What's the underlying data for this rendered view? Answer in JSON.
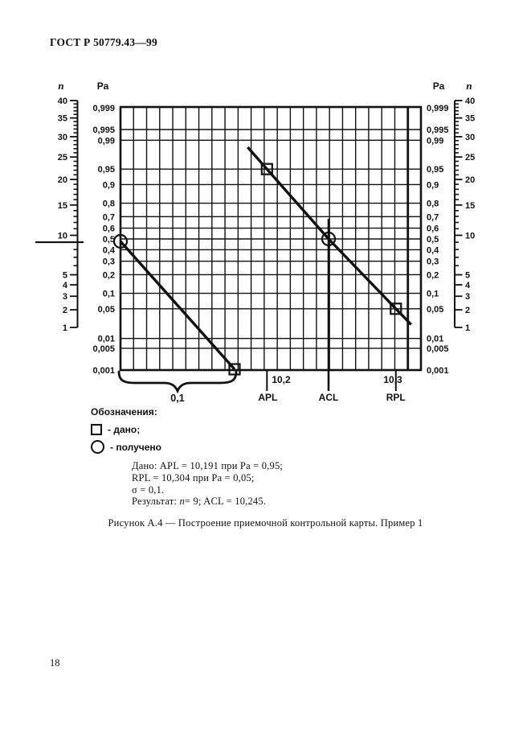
{
  "page": {
    "header": "ГОСТ Р 50779.43—99",
    "page_number": "18",
    "caption": "Рисунок А.4 — Построение приемочной контрольной карты. Пример 1"
  },
  "figure": {
    "axis_titles": {
      "left_n": "n",
      "left_pa": "Ра",
      "right_pa": "Ра",
      "right_n": "n"
    },
    "legend": {
      "title": "Обозначения:",
      "given_label": "- дано;",
      "obtained_label": "- получено"
    },
    "notes": {
      "line1": "Дано: APL = 10,191 при Ра = 0,95;",
      "line2": "RPL = 10,304 при Ра = 0,05;",
      "line3": "σ = 0,1.",
      "line4_prefix": "Результат: ",
      "line4_n": "n",
      "line4_rest": "= 9; ACL = 10,245."
    }
  },
  "chart_data": {
    "type": "line",
    "x_axis": {
      "tick_labels": [
        "10,2",
        "10,3"
      ],
      "tick_values": [
        10.2,
        10.3
      ],
      "construction_line_labels": [
        "APL",
        "ACL",
        "RPL"
      ],
      "construction_line_values": [
        10.191,
        10.245,
        10.304
      ],
      "sigma_brace_label": "0,1"
    },
    "pa_axis": {
      "title": "Ра",
      "scale": "normal-probability",
      "sides": [
        "left",
        "right"
      ],
      "tick_labels": [
        "0,999",
        "0,995",
        "0,99",
        "0,95",
        "0,9",
        "0,8",
        "0,7",
        "0,6",
        "0,5",
        "0,4",
        "0,3",
        "0,2",
        "0,1",
        "0,05",
        "0,01",
        "0,005",
        "0,001"
      ],
      "tick_values": [
        0.999,
        0.995,
        0.99,
        0.95,
        0.9,
        0.8,
        0.7,
        0.6,
        0.5,
        0.4,
        0.3,
        0.2,
        0.1,
        0.05,
        0.01,
        0.005,
        0.001
      ]
    },
    "n_axis": {
      "title": "n",
      "scale": "sqrt",
      "sides": [
        "left",
        "right"
      ],
      "major_tick_labels": [
        "40",
        "35",
        "30",
        "25",
        "20",
        "15",
        "10",
        "5",
        "4",
        "3",
        "2",
        "1"
      ],
      "major_tick_values": [
        40,
        35,
        30,
        25,
        20,
        15,
        10,
        5,
        4,
        3,
        2,
        1
      ],
      "minor_ticks_every_integer": true
    },
    "series": [
      {
        "name": "sigma-auxiliary-line",
        "points": [
          {
            "pa": 0.5,
            "marker": "circle",
            "meaning": "получено"
          },
          {
            "pa": 0.001,
            "marker": "square",
            "meaning": "дано",
            "dx_from_start": 0.1
          }
        ]
      },
      {
        "name": "acceptance-control-line",
        "points": [
          {
            "x": 10.191,
            "pa": 0.95,
            "marker": "square",
            "label": "APL",
            "meaning": "дано"
          },
          {
            "x": 10.245,
            "pa": 0.5,
            "marker": "circle",
            "label": "ACL",
            "meaning": "получено"
          },
          {
            "x": 10.304,
            "pa": 0.05,
            "marker": "square",
            "label": "RPL",
            "meaning": "дано"
          }
        ]
      }
    ],
    "result_pointer": {
      "n": 9,
      "ACL": 10.245
    }
  }
}
